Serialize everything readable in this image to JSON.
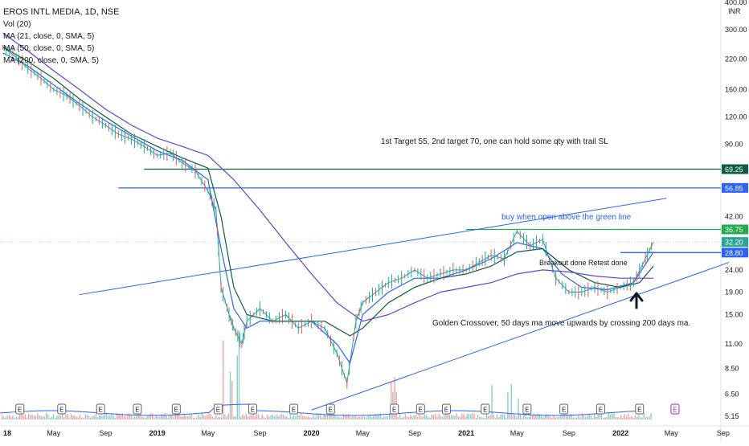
{
  "chart_data": {
    "type": "line",
    "title": "EROS INTL MEDIA, 1D, NSE",
    "currency": "INR",
    "legend_lines": [
      "Vol (20)",
      "MA (21, close, 0, SMA, 5)",
      "MA (50, close, 0, SMA, 5)",
      "MA (200, close, 0, SMA, 5)"
    ],
    "y_scale": "log",
    "y_ticks": [
      "400.00",
      "300.00",
      "220.00",
      "160.00",
      "120.00",
      "90.00",
      "69.25",
      "56.85",
      "42.00",
      "36.75",
      "32.20",
      "28.80",
      "24.00",
      "19.00",
      "15.00",
      "11.00",
      "8.50",
      "6.50",
      "5.15"
    ],
    "y_tick_values": [
      400,
      300,
      220,
      160,
      120,
      90,
      69.25,
      56.85,
      42,
      36.75,
      32.2,
      28.8,
      24,
      19,
      15,
      11,
      8.5,
      6.5,
      5.15
    ],
    "x_ticks": [
      "18",
      "May",
      "Sep",
      "2019",
      "May",
      "Sep",
      "2020",
      "May",
      "Sep",
      "2021",
      "May",
      "Sep",
      "2022",
      "May",
      "Sep"
    ],
    "x_tick_dates": [
      "2018-01",
      "2018-05",
      "2018-09",
      "2019-01",
      "2019-05",
      "2019-09",
      "2020-01",
      "2020-05",
      "2020-09",
      "2021-01",
      "2021-05",
      "2021-09",
      "2022-01",
      "2022-05",
      "2022-09"
    ],
    "price_labels": [
      {
        "text": "69.25",
        "value": 69.25,
        "color": "#0b5e3f"
      },
      {
        "text": "56.85",
        "value": 56.85,
        "color": "#2962ff"
      },
      {
        "text": "36.75",
        "value": 36.75,
        "color": "#22ab49"
      },
      {
        "text": "32.20",
        "value": 32.2,
        "color": "#26a69a"
      },
      {
        "text": "28.80",
        "value": 28.8,
        "color": "#2962ff"
      }
    ],
    "horizontal_lines": [
      {
        "value": 69.25,
        "from": "2018-12",
        "color": "#0b5e3f"
      },
      {
        "value": 56.85,
        "from": "2018-10",
        "color": "#2962ff"
      },
      {
        "value": 36.75,
        "from": "2021-01",
        "color": "#22ab49"
      },
      {
        "value": 28.8,
        "from": "2022-01",
        "color": "#2962ff"
      }
    ],
    "annotations": [
      "1st Target 55, 2nd target 70, one can hold some qty with trail SL",
      "buy when open above the green line",
      "Breakout done Retest done",
      "Golden Crossover, 50 days ma move upwards by crossing 200 days ma."
    ],
    "earnings_marker": "E",
    "series": [
      {
        "key": "price",
        "color": "#26a69a",
        "dates": [
          "2018-01-01",
          "2018-02-01",
          "2018-03-01",
          "2018-04-01",
          "2018-05-01",
          "2018-06-01",
          "2018-07-01",
          "2018-08-01",
          "2018-09-01",
          "2018-10-01",
          "2018-11-01",
          "2018-12-01",
          "2019-01-01",
          "2019-02-01",
          "2019-03-01",
          "2019-04-01",
          "2019-05-01",
          "2019-05-20",
          "2019-06-01",
          "2019-06-20",
          "2019-07-01",
          "2019-07-20",
          "2019-08-01",
          "2019-09-01",
          "2019-10-01",
          "2019-11-01",
          "2019-12-01",
          "2020-01-01",
          "2020-02-01",
          "2020-03-01",
          "2020-03-25",
          "2020-04-15",
          "2020-05-01",
          "2020-06-01",
          "2020-07-01",
          "2020-08-01",
          "2020-09-01",
          "2020-10-01",
          "2020-11-01",
          "2020-12-01",
          "2021-01-01",
          "2021-02-01",
          "2021-03-01",
          "2021-04-01",
          "2021-05-01",
          "2021-06-01",
          "2021-07-01",
          "2021-08-01",
          "2021-09-01",
          "2021-10-01",
          "2021-11-01",
          "2021-12-01",
          "2022-01-01",
          "2022-02-01",
          "2022-03-01",
          "2022-03-20"
        ],
        "values": [
          250,
          225,
          200,
          180,
          160,
          150,
          135,
          120,
          110,
          100,
          95,
          88,
          80,
          82,
          74,
          68,
          55,
          45,
          20,
          15,
          13,
          11,
          14,
          16,
          14,
          15,
          13,
          14,
          13,
          10,
          7.3,
          14,
          17,
          19,
          21,
          22,
          24,
          22,
          23,
          24,
          24,
          26,
          28,
          27,
          36,
          31,
          33,
          22,
          19,
          19,
          20,
          19,
          20,
          21,
          27,
          32.2
        ]
      },
      {
        "key": "ma21",
        "color": "#2962ff",
        "dates": [
          "2018-01-01",
          "2018-03-01",
          "2018-05-01",
          "2018-07-01",
          "2018-09-01",
          "2018-11-01",
          "2019-01-01",
          "2019-03-01",
          "2019-05-01",
          "2019-06-01",
          "2019-07-01",
          "2019-08-01",
          "2019-09-01",
          "2019-11-01",
          "2020-01-01",
          "2020-03-01",
          "2020-04-01",
          "2020-05-01",
          "2020-07-01",
          "2020-09-01",
          "2020-11-01",
          "2021-01-01",
          "2021-03-01",
          "2021-05-01",
          "2021-07-01",
          "2021-08-15",
          "2021-10-01",
          "2021-12-01",
          "2022-02-01",
          "2022-03-20"
        ],
        "values": [
          235,
          205,
          168,
          138,
          115,
          98,
          84,
          76,
          62,
          30,
          16,
          13,
          14,
          14,
          14,
          11,
          9,
          15,
          19,
          22,
          22,
          24,
          27,
          32,
          30,
          23,
          20,
          19.5,
          21,
          29
        ]
      },
      {
        "key": "ma50",
        "color": "#0b5e3f",
        "dates": [
          "2018-01-01",
          "2018-03-01",
          "2018-05-01",
          "2018-07-01",
          "2018-09-01",
          "2018-11-01",
          "2019-01-01",
          "2019-03-01",
          "2019-05-01",
          "2019-06-01",
          "2019-07-01",
          "2019-08-01",
          "2019-10-01",
          "2019-12-01",
          "2020-02-01",
          "2020-04-01",
          "2020-05-01",
          "2020-07-01",
          "2020-09-01",
          "2020-11-01",
          "2021-01-01",
          "2021-03-01",
          "2021-05-01",
          "2021-07-01",
          "2021-09-01",
          "2021-11-01",
          "2022-01-01",
          "2022-02-15",
          "2022-03-20"
        ],
        "values": [
          250,
          215,
          180,
          145,
          120,
          100,
          88,
          78,
          70,
          42,
          20,
          15,
          14,
          14,
          14,
          12,
          13,
          17,
          20,
          22,
          23,
          25,
          29,
          30,
          24,
          21,
          20,
          21,
          25
        ]
      },
      {
        "key": "ma200",
        "color": "#5b45d6",
        "dates": [
          "2018-01-01",
          "2018-03-01",
          "2018-05-01",
          "2018-07-01",
          "2018-09-01",
          "2018-11-01",
          "2019-01-01",
          "2019-03-01",
          "2019-05-01",
          "2019-07-01",
          "2019-09-01",
          "2019-11-01",
          "2020-01-01",
          "2020-03-01",
          "2020-05-01",
          "2020-07-01",
          "2020-09-01",
          "2020-11-01",
          "2021-01-01",
          "2021-03-01",
          "2021-05-01",
          "2021-07-01",
          "2021-09-01",
          "2021-11-01",
          "2022-01-01",
          "2022-03-20"
        ],
        "values": [
          290,
          240,
          195,
          160,
          130,
          110,
          96,
          88,
          80,
          62,
          45,
          32,
          23,
          17,
          14,
          15,
          17,
          19,
          20,
          21,
          23,
          24,
          23.5,
          22.5,
          22,
          22
        ]
      }
    ],
    "channel_lines": [
      {
        "from": {
          "date": "2018-07-01",
          "value": 18.5
        },
        "to": {
          "date": "2022-04-20",
          "value": 51
        },
        "color": "#2962ff"
      },
      {
        "from": {
          "date": "2020-01-01",
          "value": 5.5
        },
        "to": {
          "date": "2022-09-15",
          "value": 26
        },
        "color": "#2962ff"
      }
    ]
  }
}
